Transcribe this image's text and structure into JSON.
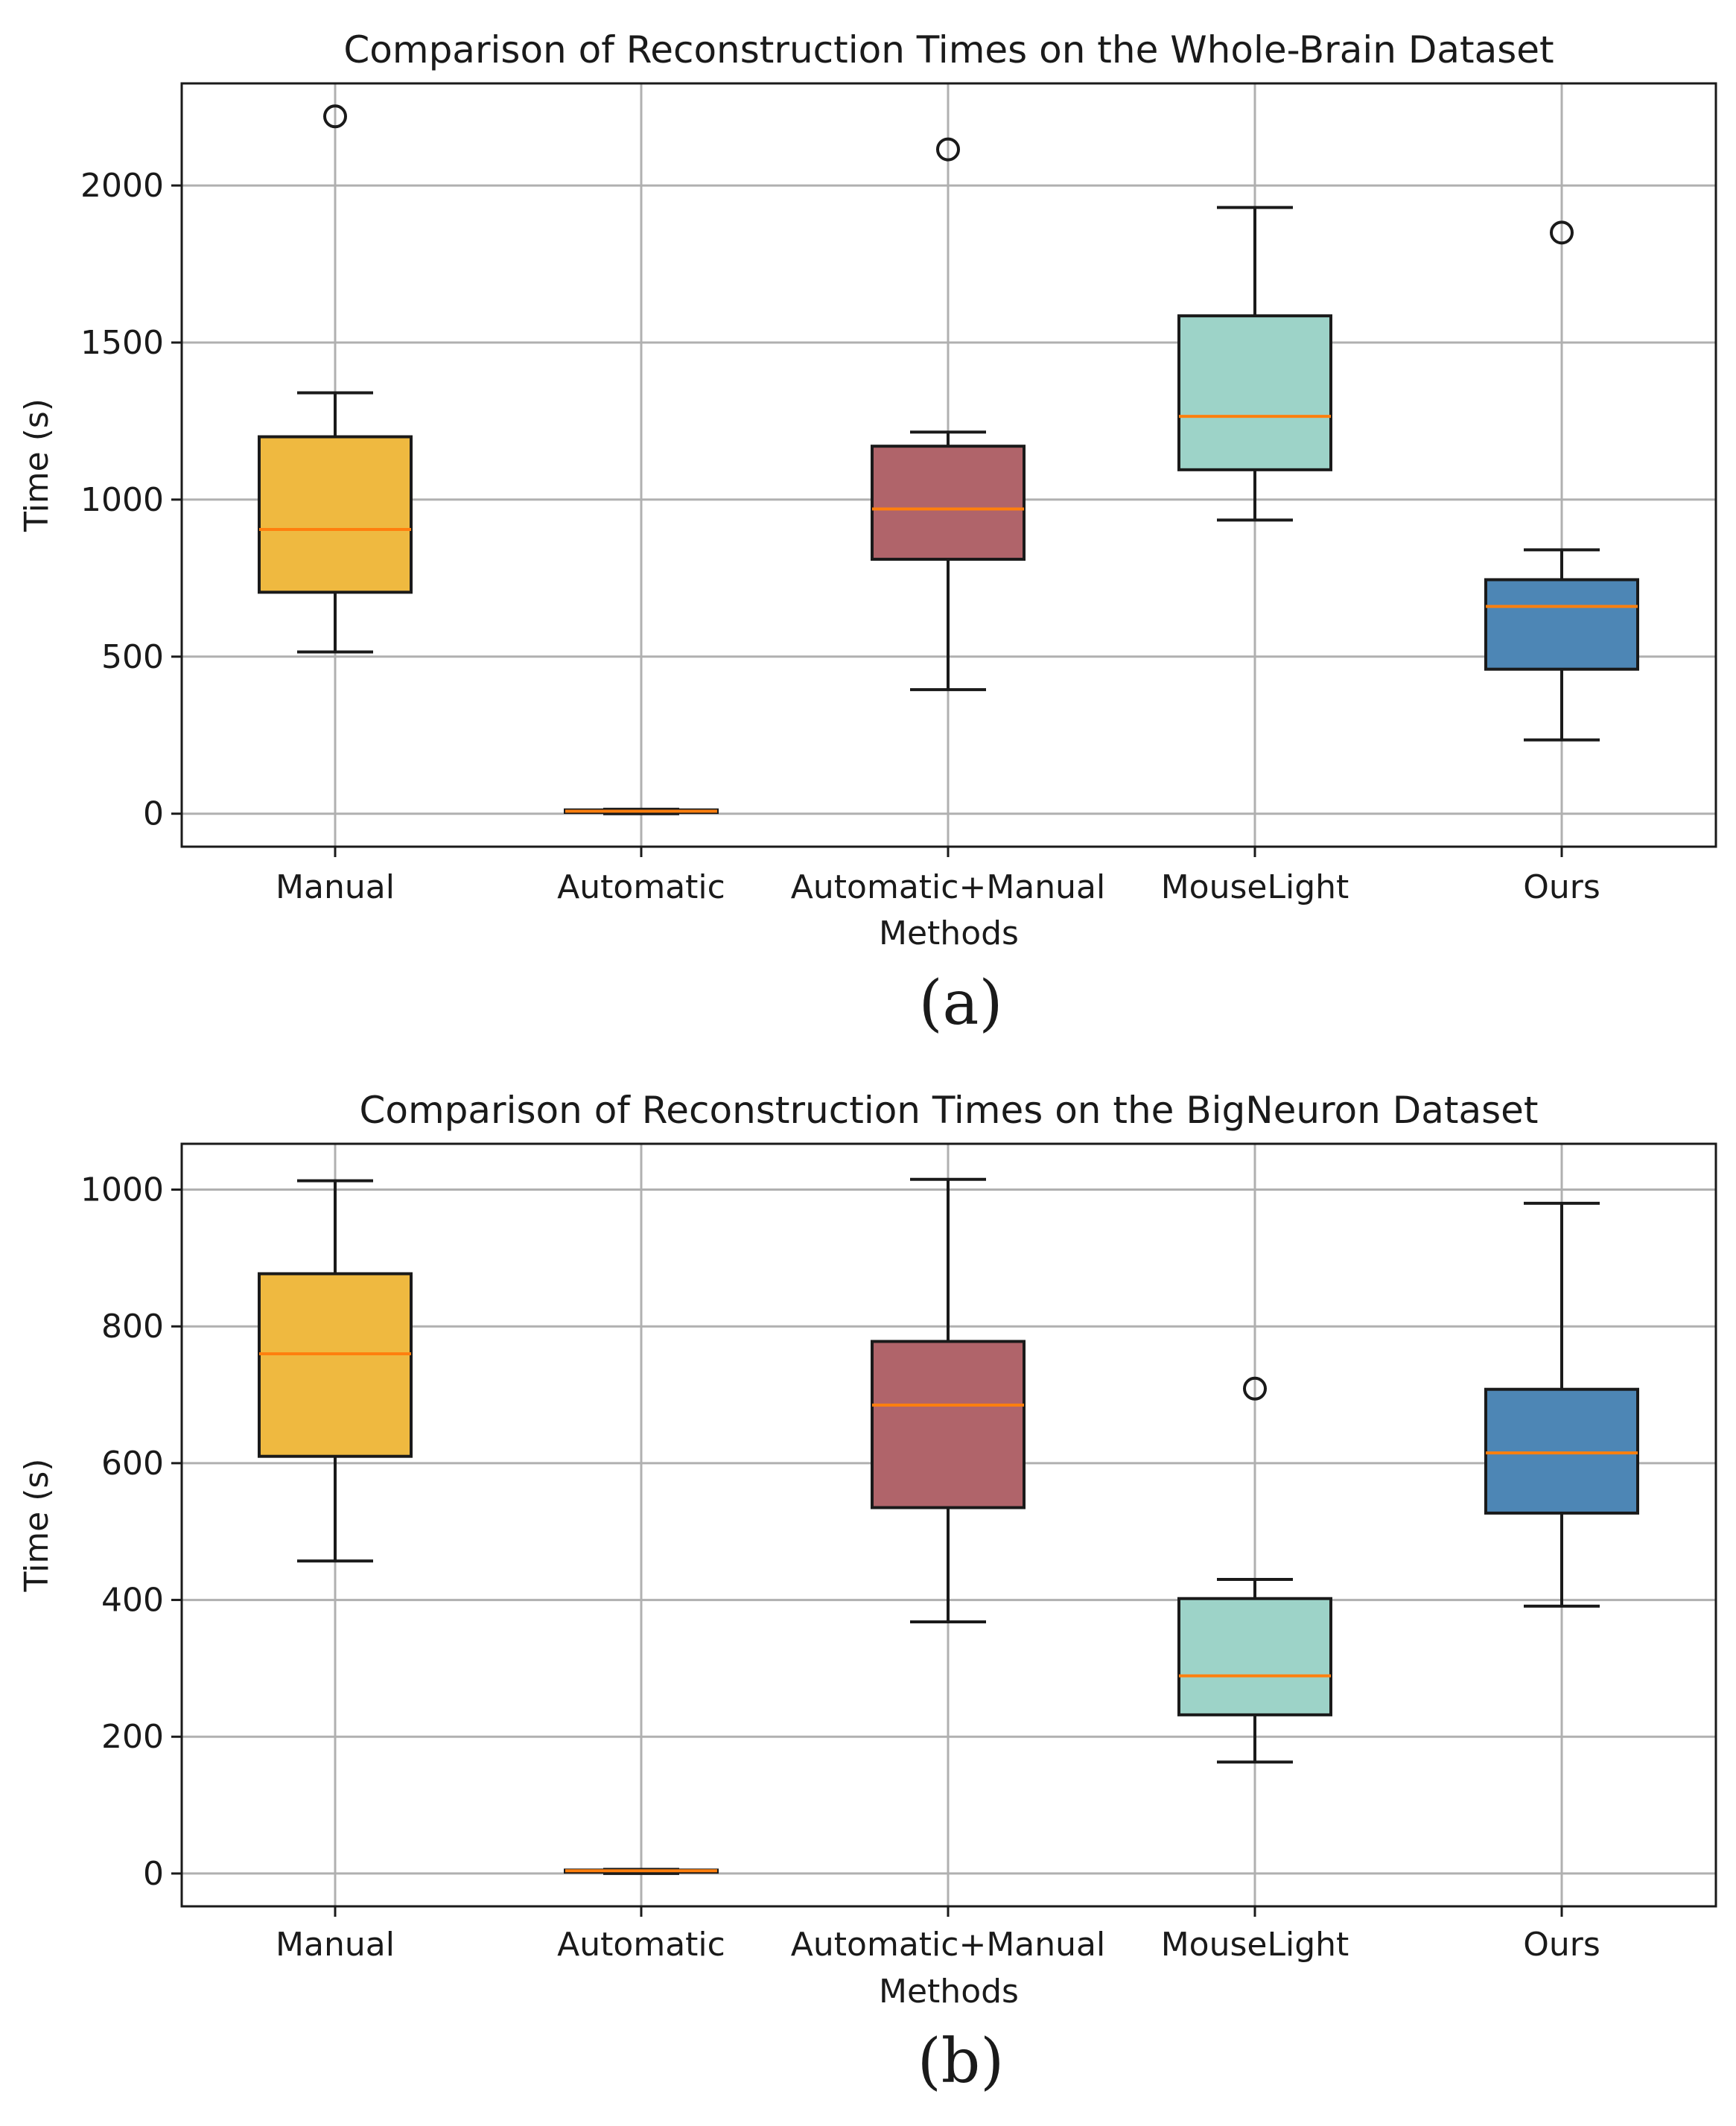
{
  "chart_data": [
    {
      "type": "box",
      "title": "Comparison of Reconstruction Times on the Whole-Brain Dataset",
      "xlabel": "Methods",
      "ylabel": "Time (s)",
      "panel_label": "(a)",
      "ylim": [
        -105,
        2325
      ],
      "yticks": [
        0,
        500,
        1000,
        1500,
        2000
      ],
      "grid": true,
      "categories": [
        "Manual",
        "Automatic",
        "Automatic+Manual",
        "MouseLight",
        "Ours"
      ],
      "boxes": [
        {
          "name": "Manual",
          "color": "#efb940",
          "whislo": 515,
          "q1": 705,
          "med": 905,
          "q3": 1200,
          "whishi": 1340,
          "fliers": [
            2220
          ]
        },
        {
          "name": "Automatic",
          "color": "#efb940",
          "whislo": 0,
          "q1": 4,
          "med": 8,
          "q3": 12,
          "whishi": 14,
          "fliers": []
        },
        {
          "name": "Automatic+Manual",
          "color": "#b0646a",
          "whislo": 395,
          "q1": 810,
          "med": 970,
          "q3": 1170,
          "whishi": 1215,
          "fliers": [
            2115
          ]
        },
        {
          "name": "MouseLight",
          "color": "#9dd3c8",
          "whislo": 935,
          "q1": 1095,
          "med": 1265,
          "q3": 1585,
          "whishi": 1930,
          "fliers": []
        },
        {
          "name": "Ours",
          "color": "#4d86b5",
          "whislo": 235,
          "q1": 460,
          "med": 660,
          "q3": 745,
          "whishi": 840,
          "fliers": [
            1850
          ]
        }
      ]
    },
    {
      "type": "box",
      "title": "Comparison of Reconstruction Times on the BigNeuron Dataset",
      "xlabel": "Methods",
      "ylabel": "Time (s)",
      "panel_label": "(b)",
      "ylim": [
        -48,
        1067
      ],
      "yticks": [
        0,
        200,
        400,
        600,
        800,
        1000
      ],
      "grid": true,
      "categories": [
        "Manual",
        "Automatic",
        "Automatic+Manual",
        "MouseLight",
        "Ours"
      ],
      "boxes": [
        {
          "name": "Manual",
          "color": "#efb940",
          "whislo": 457,
          "q1": 610,
          "med": 760,
          "q3": 877,
          "whishi": 1013,
          "fliers": []
        },
        {
          "name": "Automatic",
          "color": "#efb940",
          "whislo": 0,
          "q1": 2,
          "med": 4,
          "q3": 5,
          "whishi": 6,
          "fliers": []
        },
        {
          "name": "Automatic+Manual",
          "color": "#b0646a",
          "whislo": 368,
          "q1": 535,
          "med": 685,
          "q3": 778,
          "whishi": 1015,
          "fliers": []
        },
        {
          "name": "MouseLight",
          "color": "#9dd3c8",
          "whislo": 163,
          "q1": 232,
          "med": 289,
          "q3": 402,
          "whishi": 430,
          "fliers": [
            709
          ]
        },
        {
          "name": "Ours",
          "color": "#4d86b5",
          "whislo": 391,
          "q1": 527,
          "med": 615,
          "q3": 708,
          "whishi": 980,
          "fliers": []
        }
      ]
    }
  ]
}
